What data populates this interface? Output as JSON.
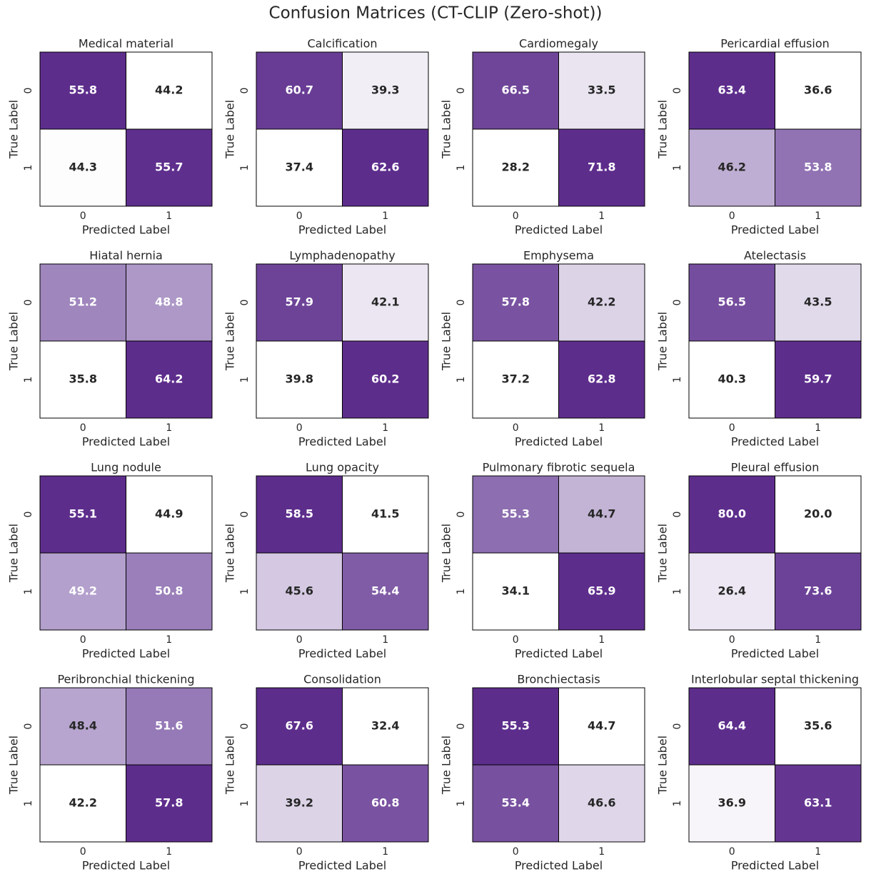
{
  "title": "Confusion Matrices (CT-CLIP (Zero-shot))",
  "x_label": "Predicted Label",
  "y_label": "True Label",
  "categories": [
    "0",
    "1"
  ],
  "colorscale": [
    "#ffffff",
    "#a58ec2",
    "#5d2d8c"
  ],
  "chart_data": [
    {
      "type": "heatmap",
      "title": "Medical material",
      "values": [
        [
          55.8,
          44.2
        ],
        [
          44.3,
          55.7
        ]
      ]
    },
    {
      "type": "heatmap",
      "title": "Calcification",
      "values": [
        [
          60.7,
          39.3
        ],
        [
          37.4,
          62.6
        ]
      ]
    },
    {
      "type": "heatmap",
      "title": "Cardiomegaly",
      "values": [
        [
          66.5,
          33.5
        ],
        [
          28.2,
          71.8
        ]
      ]
    },
    {
      "type": "heatmap",
      "title": "Pericardial effusion",
      "values": [
        [
          63.4,
          36.6
        ],
        [
          46.2,
          53.8
        ]
      ]
    },
    {
      "type": "heatmap",
      "title": "Hiatal hernia",
      "values": [
        [
          51.2,
          48.8
        ],
        [
          35.8,
          64.2
        ]
      ]
    },
    {
      "type": "heatmap",
      "title": "Lymphadenopathy",
      "values": [
        [
          57.9,
          42.1
        ],
        [
          39.8,
          60.2
        ]
      ]
    },
    {
      "type": "heatmap",
      "title": "Emphysema",
      "values": [
        [
          57.8,
          42.2
        ],
        [
          37.2,
          62.8
        ]
      ]
    },
    {
      "type": "heatmap",
      "title": "Atelectasis",
      "values": [
        [
          56.5,
          43.5
        ],
        [
          40.3,
          59.7
        ]
      ]
    },
    {
      "type": "heatmap",
      "title": "Lung nodule",
      "values": [
        [
          55.1,
          44.9
        ],
        [
          49.2,
          50.8
        ]
      ]
    },
    {
      "type": "heatmap",
      "title": "Lung opacity",
      "values": [
        [
          58.5,
          41.5
        ],
        [
          45.6,
          54.4
        ]
      ]
    },
    {
      "type": "heatmap",
      "title": "Pulmonary fibrotic sequela",
      "values": [
        [
          55.3,
          44.7
        ],
        [
          34.1,
          65.9
        ]
      ]
    },
    {
      "type": "heatmap",
      "title": "Pleural effusion",
      "values": [
        [
          80,
          20
        ],
        [
          26.4,
          73.6
        ]
      ],
      "value_labels": [
        [
          "80.0",
          "20.0"
        ],
        [
          "26.4",
          "73.6"
        ]
      ]
    },
    {
      "type": "heatmap",
      "title": "Peribronchial thickening",
      "values": [
        [
          48.4,
          51.6
        ],
        [
          42.2,
          57.8
        ]
      ]
    },
    {
      "type": "heatmap",
      "title": "Consolidation",
      "values": [
        [
          67.6,
          32.4
        ],
        [
          39.2,
          60.8
        ]
      ]
    },
    {
      "type": "heatmap",
      "title": "Bronchiectasis",
      "values": [
        [
          55.3,
          44.7
        ],
        [
          53.4,
          46.6
        ]
      ]
    },
    {
      "type": "heatmap",
      "title": "Interlobular septal thickening",
      "values": [
        [
          64.4,
          35.6
        ],
        [
          36.9,
          63.1
        ]
      ]
    }
  ]
}
